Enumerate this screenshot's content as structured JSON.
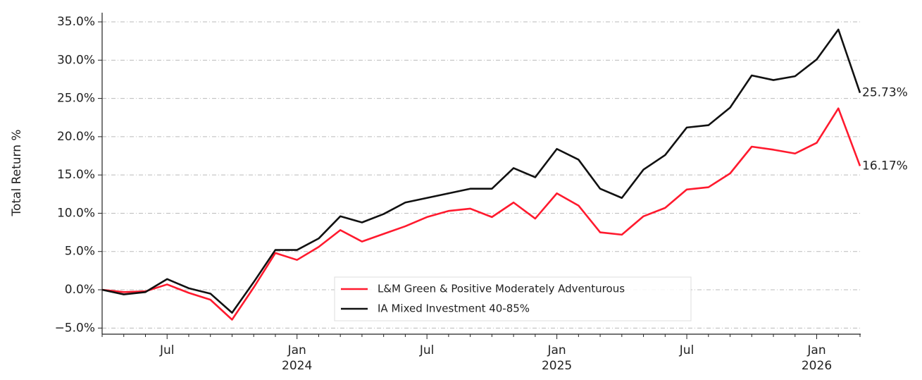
{
  "chart_data": {
    "type": "line",
    "y_label": "Total Return %",
    "categories": [
      null,
      null,
      null,
      "Jul",
      null,
      null,
      null,
      null,
      null,
      "Jan\n2024",
      null,
      null,
      null,
      null,
      null,
      "Jul",
      null,
      null,
      null,
      null,
      null,
      "Jan\n2025",
      null,
      null,
      null,
      null,
      null,
      "Jul",
      null,
      null,
      null,
      null,
      null,
      "Jan\n2026",
      null,
      null
    ],
    "series": [
      {
        "name": "L&M Green & Positive Moderately Adventurous",
        "color": "#ff1a2e",
        "values": [
          0,
          -0.3,
          -0.2,
          0.7,
          -0.4,
          -1.3,
          -3.9,
          0.3,
          4.8,
          3.9,
          5.6,
          7.8,
          6.3,
          7.3,
          8.3,
          9.5,
          10.3,
          10.6,
          9.5,
          11.4,
          9.3,
          12.6,
          11.0,
          7.5,
          7.2,
          9.6,
          10.7,
          13.1,
          13.4,
          15.2,
          18.7,
          18.3,
          17.8,
          19.2,
          23.7,
          16.17
        ],
        "value_labels": [
          null,
          null,
          null,
          null,
          null,
          null,
          null,
          null,
          null,
          null,
          null,
          null,
          null,
          null,
          null,
          null,
          null,
          null,
          null,
          null,
          null,
          null,
          null,
          null,
          null,
          null,
          null,
          null,
          null,
          null,
          null,
          null,
          null,
          null,
          null,
          "16.17%"
        ]
      },
      {
        "name": "IA Mixed Investment 40-85%",
        "color": "#111111",
        "values": [
          0,
          -0.6,
          -0.3,
          1.4,
          0.2,
          -0.5,
          -3.0,
          1.0,
          5.2,
          5.2,
          6.7,
          9.6,
          8.8,
          9.9,
          11.4,
          12.0,
          12.6,
          13.2,
          13.2,
          15.9,
          14.7,
          18.4,
          17.0,
          13.2,
          12.0,
          15.7,
          17.6,
          21.2,
          21.5,
          23.8,
          28.0,
          27.4,
          27.9,
          30.1,
          34.0,
          25.73
        ],
        "value_labels": [
          null,
          null,
          null,
          null,
          null,
          null,
          null,
          null,
          null,
          null,
          null,
          null,
          null,
          null,
          null,
          null,
          null,
          null,
          null,
          null,
          null,
          null,
          null,
          null,
          null,
          null,
          null,
          null,
          null,
          null,
          null,
          null,
          null,
          null,
          null,
          "25.73%"
        ]
      }
    ],
    "ylim": [
      -5.8,
      36.2
    ],
    "yticks": [
      {
        "value": -5,
        "label": "−5.0%"
      },
      {
        "value": 0,
        "label": "0.0%"
      },
      {
        "value": 5,
        "label": "5.0%"
      },
      {
        "value": 10,
        "label": "10.0%"
      },
      {
        "value": 15,
        "label": "15.0%"
      },
      {
        "value": 20,
        "label": "20.0%"
      },
      {
        "value": 25,
        "label": "25.0%"
      },
      {
        "value": 30,
        "label": "30.0%"
      },
      {
        "value": 35,
        "label": "35.0%"
      }
    ],
    "grid": true,
    "legend": "lower center"
  }
}
